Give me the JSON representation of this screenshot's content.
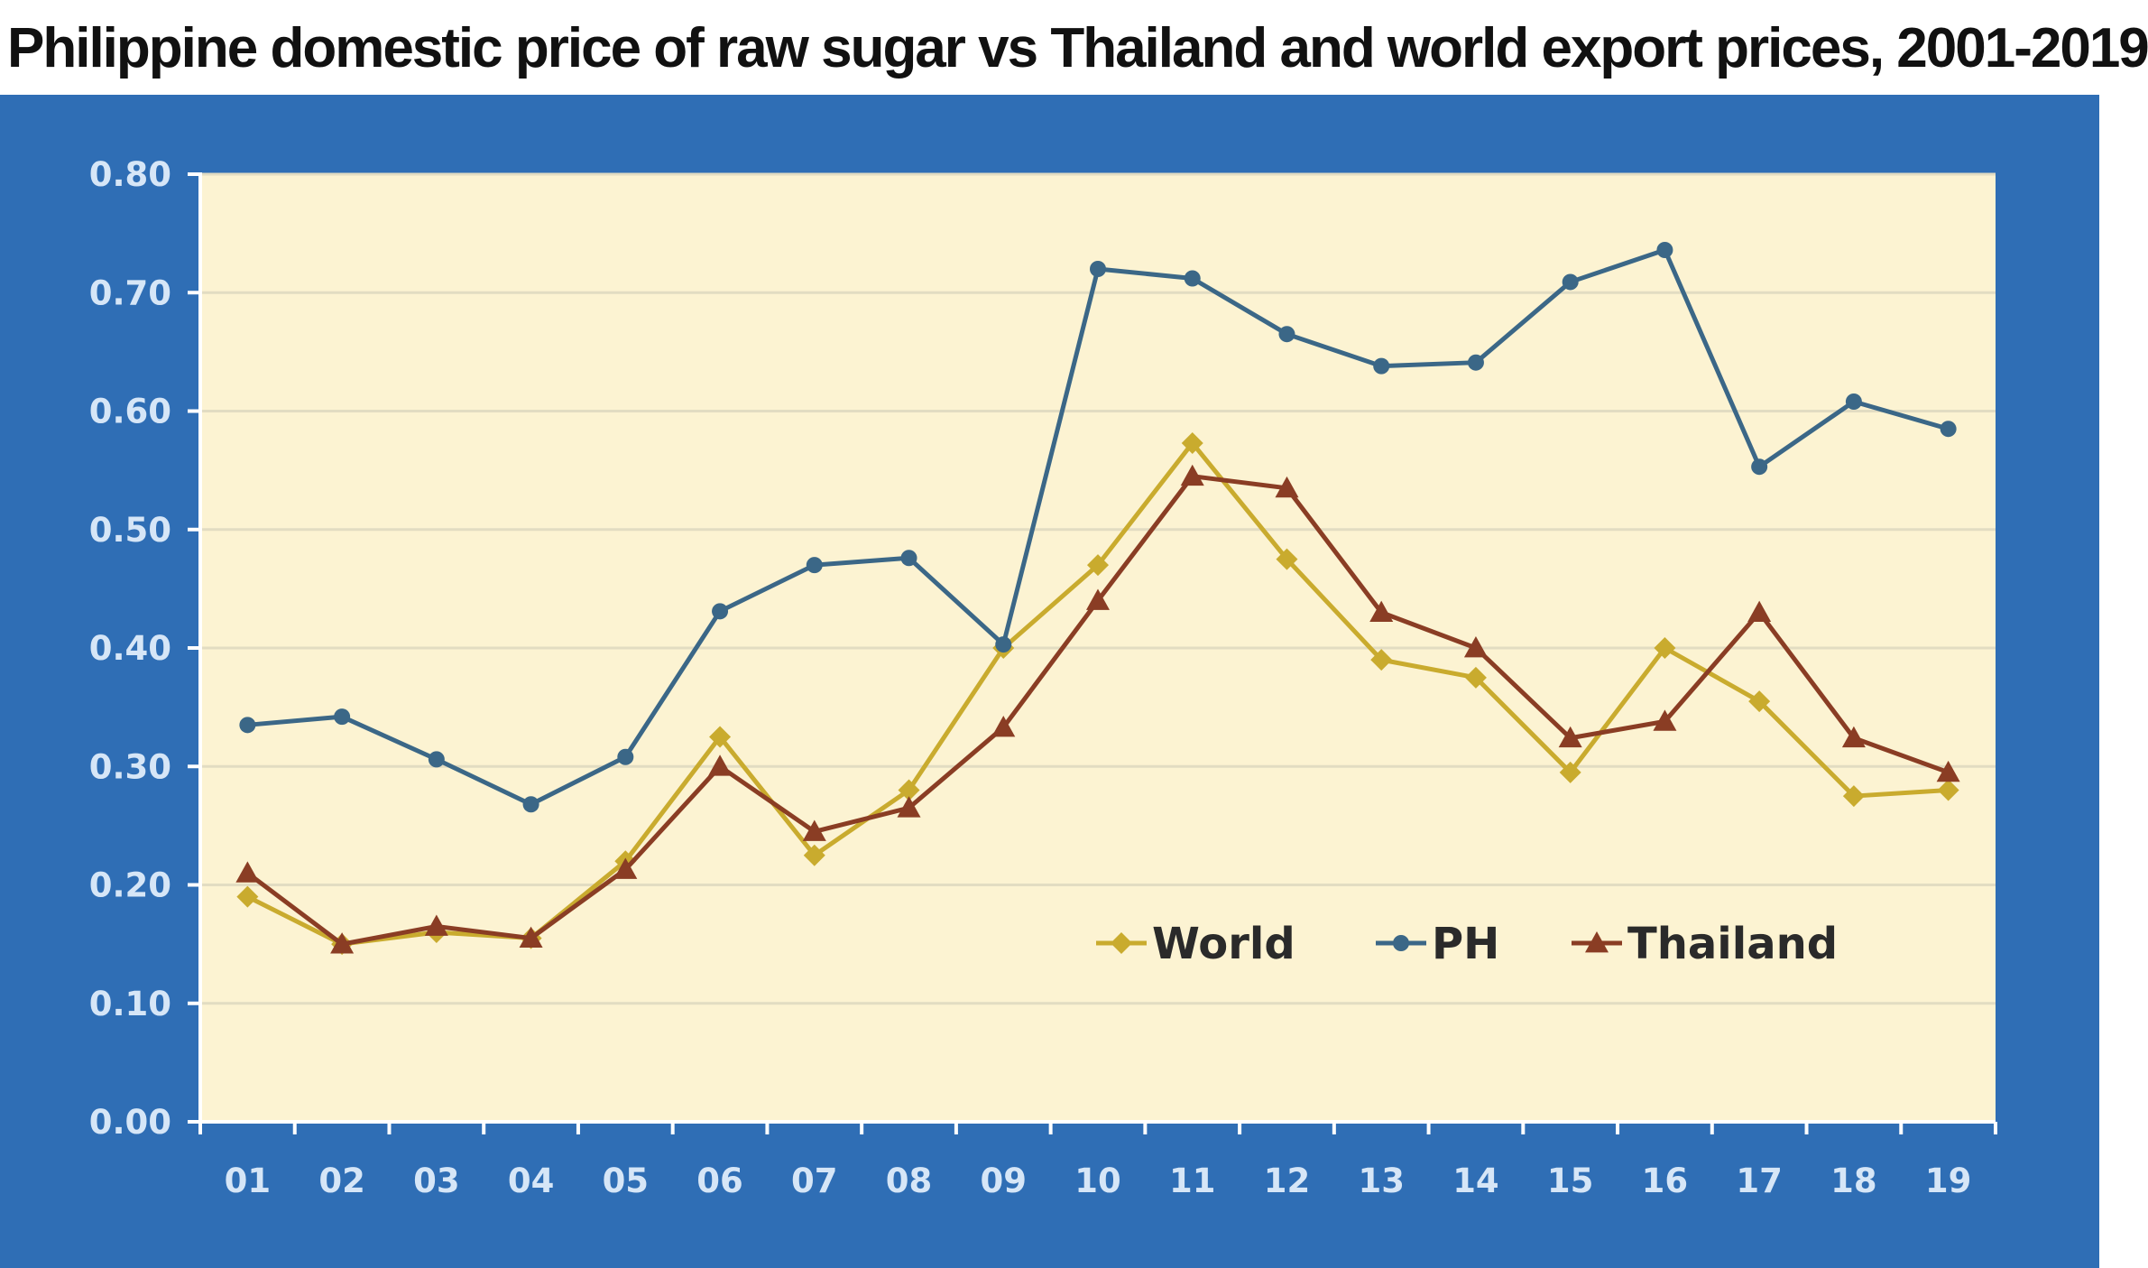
{
  "title": "Philippine domestic price of raw sugar vs Thailand and world export prices, 2001-2019",
  "colors": {
    "panel": "#2f6eb5",
    "plot_bg": "#fcf3d2",
    "grid": "#e2dcc2",
    "axis": "#ffffff",
    "tick_text": "#d6e6f7"
  },
  "chart_data": {
    "type": "line",
    "categories": [
      "01",
      "02",
      "03",
      "04",
      "05",
      "06",
      "07",
      "08",
      "09",
      "10",
      "11",
      "12",
      "13",
      "14",
      "15",
      "16",
      "17",
      "18",
      "19"
    ],
    "ylim": [
      0,
      0.8
    ],
    "yticks": [
      "0.00",
      "0.10",
      "0.20",
      "0.30",
      "0.40",
      "0.50",
      "0.60",
      "0.70",
      "0.80"
    ],
    "grid": true,
    "legend_position": "bottom-right",
    "series": [
      {
        "name": "World",
        "color": "#c9ab2e",
        "marker": "diamond",
        "values": [
          0.19,
          0.15,
          0.16,
          0.155,
          0.22,
          0.325,
          0.225,
          0.28,
          0.4,
          0.47,
          0.573,
          0.475,
          0.39,
          0.375,
          0.295,
          0.4,
          0.355,
          0.275,
          0.28
        ]
      },
      {
        "name": "PH",
        "color": "#3b6787",
        "marker": "circle",
        "values": [
          0.335,
          0.342,
          0.306,
          0.268,
          0.308,
          0.431,
          0.47,
          0.476,
          0.403,
          0.72,
          0.712,
          0.665,
          0.638,
          0.641,
          0.709,
          0.736,
          0.553,
          0.608,
          0.585
        ]
      },
      {
        "name": "Thailand",
        "color": "#8a3d24",
        "marker": "triangle",
        "values": [
          0.21,
          0.15,
          0.165,
          0.155,
          0.213,
          0.3,
          0.245,
          0.265,
          0.333,
          0.44,
          0.545,
          0.535,
          0.43,
          0.4,
          0.324,
          0.338,
          0.43,
          0.324,
          0.295
        ]
      }
    ]
  }
}
